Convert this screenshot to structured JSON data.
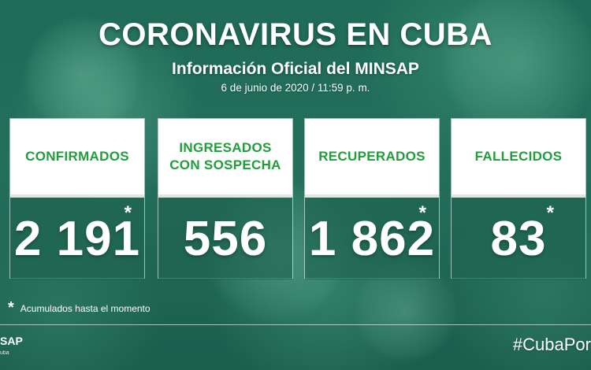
{
  "header": {
    "title": "CORONAVIRUS EN CUBA",
    "subtitle": "Información Oficial del MINSAP",
    "date": "6 de junio de 2020 / 11:59 p. m."
  },
  "cards": [
    {
      "label": "CONFIRMADOS",
      "value": "2 191",
      "asterisk": "*"
    },
    {
      "label_line1": "INGRESADOS",
      "label_line2": "CON SOSPECHA",
      "value": "556",
      "asterisk": ""
    },
    {
      "label": "RECUPERADOS",
      "value": "1 862",
      "asterisk": "*"
    },
    {
      "label": "FALLECIDOS",
      "value": "83",
      "asterisk": "*"
    }
  ],
  "footnote": {
    "star": "*",
    "text": "Acumulados hasta el momento"
  },
  "footer": {
    "logo_text": "SAP",
    "logo_small": "uba",
    "hashtag": "#CubaPor"
  },
  "colors": {
    "label_green": "#1f9e3a",
    "background": "#1f6b57"
  }
}
